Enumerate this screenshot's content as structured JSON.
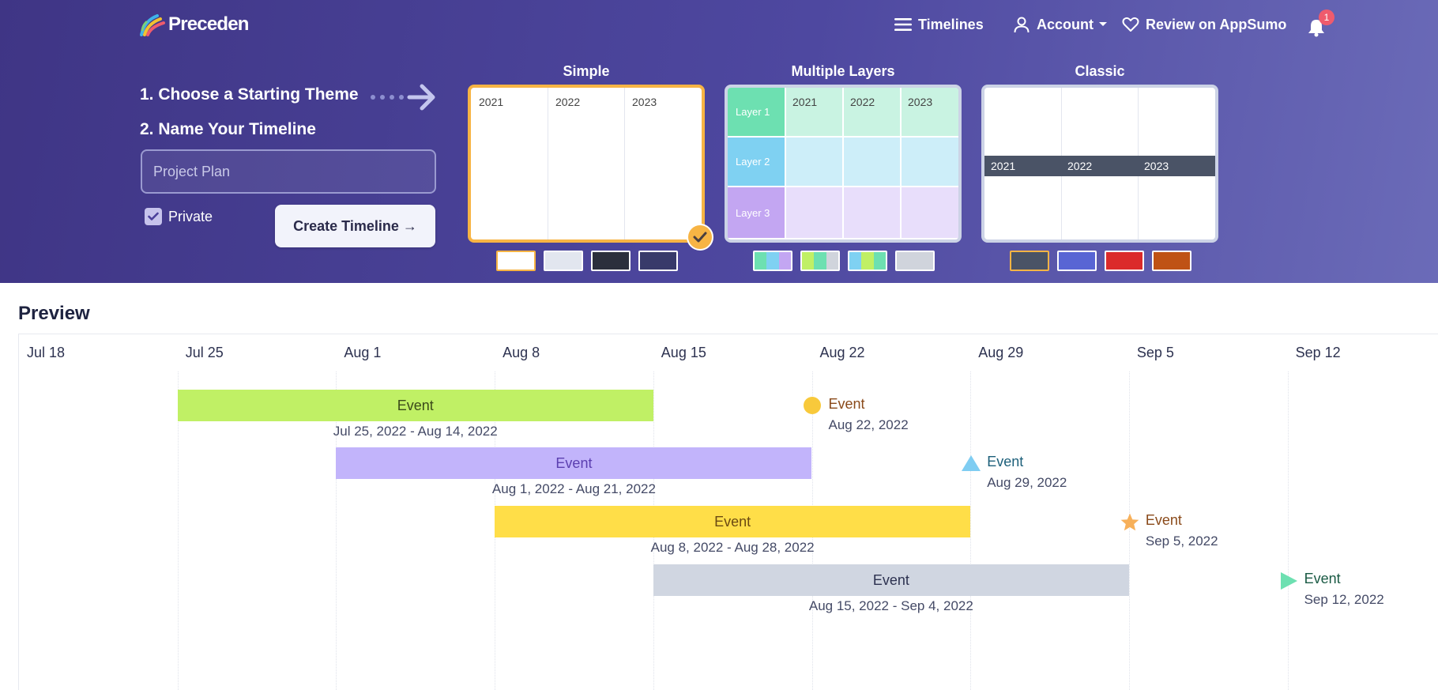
{
  "app": {
    "logo_text": "Preceden",
    "colors": {
      "header_start": "#3f3585",
      "header_end": "#6b6bb8",
      "accent": "#f7b444",
      "badge": "#ef5b6d"
    }
  },
  "nav": {
    "timelines": {
      "label": "Timelines",
      "icon": "hamburger-icon"
    },
    "account": {
      "label": "Account",
      "icon": "user-icon"
    },
    "review": {
      "label": "Review on AppSumo",
      "icon": "heart-icon"
    },
    "notifications": {
      "icon": "bell-icon",
      "count": "1"
    }
  },
  "form": {
    "step1": "1. Choose a Starting Theme",
    "step2": "2. Name Your Timeline",
    "name_placeholder": "Project Plan",
    "private_label": "Private",
    "private_checked": true,
    "create_label": "Create Timeline →"
  },
  "themes": [
    {
      "title": "Simple",
      "selected": true,
      "years": [
        "2021",
        "2022",
        "2023"
      ],
      "swatches": [
        [
          "#ffffff"
        ],
        [
          "#e2e6ef"
        ],
        [
          "#2b2f3c"
        ],
        [
          "#383a6a"
        ]
      ],
      "selected_swatch": 0
    },
    {
      "title": "Multiple Layers",
      "selected": false,
      "years": [
        "2021",
        "2022",
        "2023"
      ],
      "layers": [
        {
          "label": "Layer 1",
          "color": "#6de0b1",
          "fill": "#c9f3e2"
        },
        {
          "label": "Layer 2",
          "color": "#7fd1f2",
          "fill": "#cdeef9"
        },
        {
          "label": "Layer 3",
          "color": "#c3a6f2",
          "fill": "#e8defb"
        }
      ],
      "swatches": [
        [
          "#6de0b1",
          "#7fd1f2",
          "#c3a6f2"
        ],
        [
          "#c0f065",
          "#6de0b1",
          "#d0d4dc"
        ],
        [
          "#7fd1f2",
          "#c0f065",
          "#6de0b1"
        ],
        [
          "#d0d4dc",
          "#d0d4dc",
          "#d0d4dc"
        ]
      ]
    },
    {
      "title": "Classic",
      "selected": false,
      "years": [
        "2021",
        "2022",
        "2023"
      ],
      "band_color": "#4a5366",
      "swatches": [
        [
          "#4a5366"
        ],
        [
          "#5865d4"
        ],
        [
          "#db2a2a"
        ],
        [
          "#bf5215"
        ]
      ]
    }
  ],
  "preview": {
    "title": "Preview",
    "dates": [
      "Jul 18",
      "Jul 25",
      "Aug 1",
      "Aug 8",
      "Aug 15",
      "Aug 22",
      "Aug 29",
      "Sep 5",
      "Sep 12"
    ],
    "spans": [
      {
        "label": "Event",
        "range": "Jul 25, 2022 - Aug 14, 2022",
        "start_week": 1,
        "end_week": 4,
        "row": 0,
        "color": "#c0f065",
        "text_color": "#3b4a1a"
      },
      {
        "label": "Event",
        "range": "Aug 1, 2022 - Aug 21, 2022",
        "start_week": 2,
        "end_week": 5,
        "row": 1,
        "color": "#c2b4fb",
        "text_color": "#5b3fb0"
      },
      {
        "label": "Event",
        "range": "Aug 8, 2022 - Aug 28, 2022",
        "start_week": 3,
        "end_week": 6,
        "row": 2,
        "color": "#ffde48",
        "text_color": "#6b4a12"
      },
      {
        "label": "Event",
        "range": "Aug 15, 2022 - Sep 4, 2022",
        "start_week": 4,
        "end_week": 7,
        "row": 3,
        "color": "#d0d6e1",
        "text_color": "#2d3250"
      }
    ],
    "points": [
      {
        "label": "Event",
        "date": "Aug 22, 2022",
        "week": 5,
        "row": 0,
        "shape": "circle-icon",
        "color": "#f8c93b",
        "text_color": "#8a4a1a"
      },
      {
        "label": "Event",
        "date": "Aug 29, 2022",
        "week": 6,
        "row": 1,
        "shape": "triangle-icon",
        "color": "#7fcdf2",
        "text_color": "#1c5f7a"
      },
      {
        "label": "Event",
        "date": "Sep 5, 2022",
        "week": 7,
        "row": 2,
        "shape": "star-icon",
        "color": "#f7b05a",
        "text_color": "#8a4a1a"
      },
      {
        "label": "Event",
        "date": "Sep 12, 2022",
        "week": 8,
        "row": 3,
        "shape": "play-icon",
        "color": "#6de0b1",
        "text_color": "#1a5a44"
      }
    ]
  }
}
